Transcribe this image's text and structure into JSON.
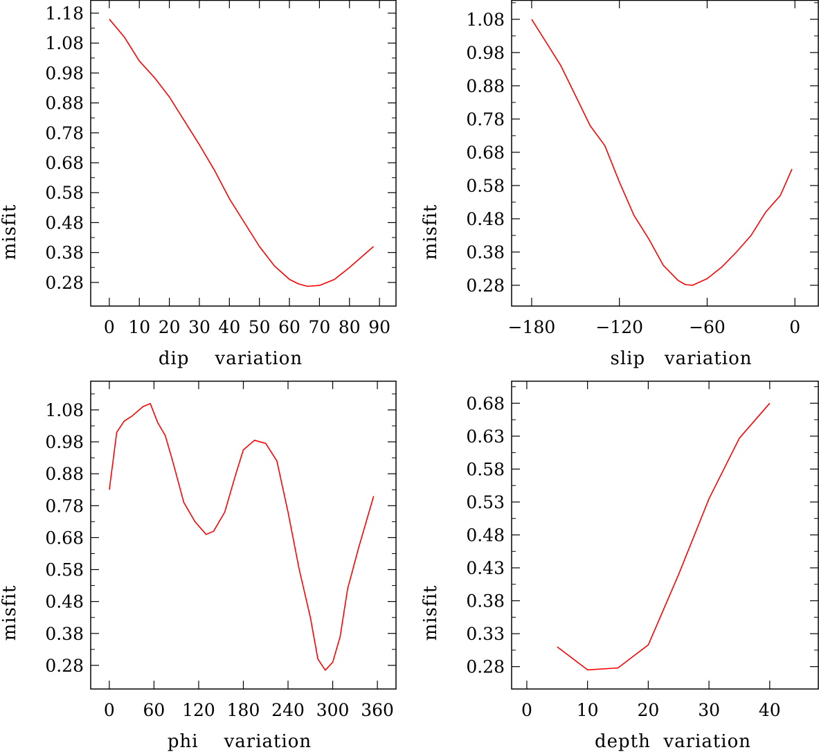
{
  "chart_data": [
    {
      "type": "line",
      "xlabel": "dip    variation",
      "ylabel": "misfit",
      "xlim": [
        -6.2,
        95.5
      ],
      "ylim": [
        0.201,
        1.224
      ],
      "xticks": [
        0,
        10,
        20,
        30,
        40,
        50,
        60,
        70,
        80,
        90
      ],
      "xtick_labels": [
        "0",
        "10",
        "20",
        "30",
        "40",
        "50",
        "60",
        "70",
        "80",
        "90"
      ],
      "yticks": [
        0.28,
        0.38,
        0.48,
        0.58,
        0.68,
        0.78,
        0.88,
        0.98,
        1.08,
        1.18
      ],
      "ytick_labels": [
        "0.28",
        "0.38",
        "0.48",
        "0.58",
        "0.68",
        "0.78",
        "0.88",
        "0.98",
        "1.08",
        "1.18"
      ],
      "series": [
        {
          "name": "misfit",
          "color": "#ff0000",
          "x": [
            0,
            5,
            10,
            15,
            20,
            25,
            30,
            35,
            40,
            45,
            50,
            55,
            60,
            63,
            66,
            70,
            75,
            80,
            84,
            88
          ],
          "y": [
            1.16,
            1.1,
            1.02,
            0.965,
            0.9,
            0.82,
            0.74,
            0.655,
            0.56,
            0.48,
            0.4,
            0.335,
            0.29,
            0.275,
            0.267,
            0.27,
            0.29,
            0.33,
            0.365,
            0.4
          ]
        }
      ]
    },
    {
      "type": "line",
      "xlabel": "slip   variation",
      "ylabel": "misfit",
      "xlim": [
        -193.7,
        16
      ],
      "ylim": [
        0.2175,
        1.138
      ],
      "xticks": [
        -180,
        -120,
        -60,
        0
      ],
      "xtick_labels": [
        "−180",
        "−120",
        "−60",
        "0"
      ],
      "yticks": [
        0.28,
        0.38,
        0.48,
        0.58,
        0.68,
        0.78,
        0.88,
        0.98,
        1.08
      ],
      "ytick_labels": [
        "0.28",
        "0.38",
        "0.48",
        "0.58",
        "0.68",
        "0.78",
        "0.88",
        "0.98",
        "1.08"
      ],
      "series": [
        {
          "name": "misfit",
          "color": "#ff0000",
          "x": [
            -180,
            -170,
            -160,
            -150,
            -140,
            -130,
            -120,
            -110,
            -100,
            -90,
            -80,
            -75,
            -70,
            -60,
            -50,
            -40,
            -30,
            -20,
            -10,
            -2
          ],
          "y": [
            1.08,
            1.01,
            0.94,
            0.85,
            0.76,
            0.7,
            0.59,
            0.49,
            0.42,
            0.34,
            0.295,
            0.282,
            0.28,
            0.3,
            0.335,
            0.38,
            0.43,
            0.5,
            0.55,
            0.63
          ]
        }
      ]
    },
    {
      "type": "line",
      "xlabel": "phi    variation",
      "ylabel": "misfit",
      "xlim": [
        -25,
        385
      ],
      "ylim": [
        0.206,
        1.171
      ],
      "xticks": [
        0,
        60,
        120,
        180,
        240,
        300,
        360
      ],
      "xtick_labels": [
        "0",
        "60",
        "120",
        "180",
        "240",
        "300",
        "360"
      ],
      "yticks": [
        0.28,
        0.38,
        0.48,
        0.58,
        0.68,
        0.78,
        0.88,
        0.98,
        1.08
      ],
      "ytick_labels": [
        "0.28",
        "0.38",
        "0.48",
        "0.58",
        "0.68",
        "0.78",
        "0.88",
        "0.98",
        "1.08"
      ],
      "series": [
        {
          "name": "misfit",
          "color": "#ff0000",
          "x": [
            0,
            10,
            20,
            30,
            45,
            55,
            65,
            75,
            85,
            100,
            115,
            130,
            140,
            155,
            170,
            180,
            195,
            210,
            225,
            240,
            255,
            270,
            280,
            290,
            300,
            310,
            320,
            335,
            355
          ],
          "y": [
            0.83,
            1.01,
            1.045,
            1.06,
            1.09,
            1.1,
            1.04,
            1.0,
            0.92,
            0.79,
            0.73,
            0.69,
            0.7,
            0.76,
            0.88,
            0.955,
            0.985,
            0.975,
            0.92,
            0.76,
            0.58,
            0.43,
            0.3,
            0.265,
            0.29,
            0.37,
            0.52,
            0.65,
            0.81
          ]
        }
      ]
    },
    {
      "type": "line",
      "xlabel": "depth  variation",
      "ylabel": "misfit",
      "xlim": [
        -2.5,
        48
      ],
      "ylim": [
        0.246,
        0.714
      ],
      "xticks": [
        0,
        10,
        20,
        30,
        40
      ],
      "xtick_labels": [
        "0",
        "10",
        "20",
        "30",
        "40"
      ],
      "yticks": [
        0.28,
        0.33,
        0.38,
        0.43,
        0.48,
        0.53,
        0.58,
        0.63,
        0.68
      ],
      "ytick_labels": [
        "0.28",
        "0.33",
        "0.38",
        "0.43",
        "0.48",
        "0.53",
        "0.58",
        "0.63",
        "0.68"
      ],
      "series": [
        {
          "name": "misfit",
          "color": "#ff0000",
          "x": [
            5,
            10,
            15,
            20,
            25,
            30,
            35,
            40
          ],
          "y": [
            0.31,
            0.275,
            0.278,
            0.313,
            0.42,
            0.535,
            0.627,
            0.68
          ]
        }
      ]
    }
  ]
}
